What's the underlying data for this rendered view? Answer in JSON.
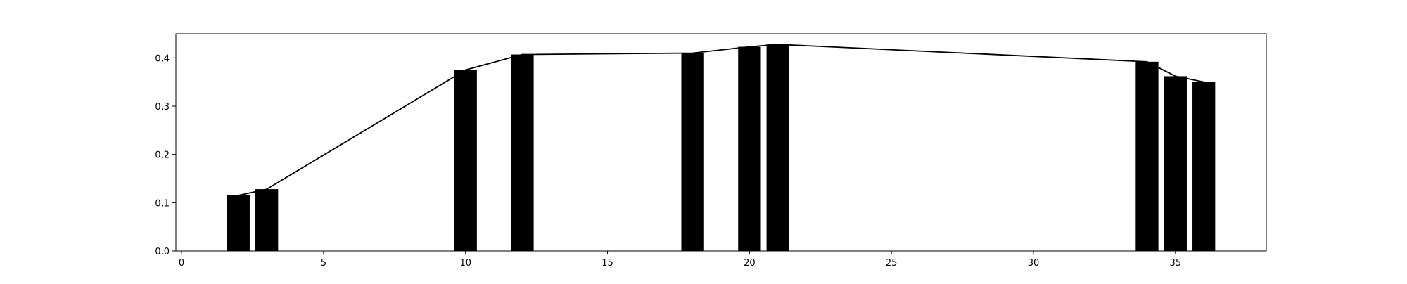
{
  "chart_data": {
    "type": "bar",
    "title": "",
    "xlabel": "",
    "ylabel": "",
    "xlim": [
      -0.2,
      38.2
    ],
    "ylim": [
      0.0,
      0.45
    ],
    "grid": false,
    "bar_color": "#000000",
    "line_color": "#000000",
    "bar_width": 0.8,
    "xticks": [
      0,
      5,
      10,
      15,
      20,
      25,
      30,
      35
    ],
    "xtick_labels": [
      "0",
      "5",
      "10",
      "15",
      "20",
      "25",
      "30",
      "35"
    ],
    "yticks": [
      0.0,
      0.1,
      0.2,
      0.3,
      0.4
    ],
    "ytick_labels": [
      "0.0",
      "0.1",
      "0.2",
      "0.3",
      "0.4"
    ],
    "series": [
      {
        "type": "bar",
        "x": [
          2,
          3,
          10,
          12,
          18,
          20,
          21,
          34,
          35,
          36
        ],
        "values": [
          0.115,
          0.128,
          0.375,
          0.407,
          0.41,
          0.423,
          0.428,
          0.392,
          0.362,
          0.35
        ]
      },
      {
        "type": "line",
        "x": [
          2,
          3,
          10,
          12,
          18,
          20,
          21,
          34,
          35,
          36
        ],
        "values": [
          0.115,
          0.128,
          0.375,
          0.407,
          0.41,
          0.423,
          0.428,
          0.392,
          0.362,
          0.35
        ]
      }
    ]
  }
}
